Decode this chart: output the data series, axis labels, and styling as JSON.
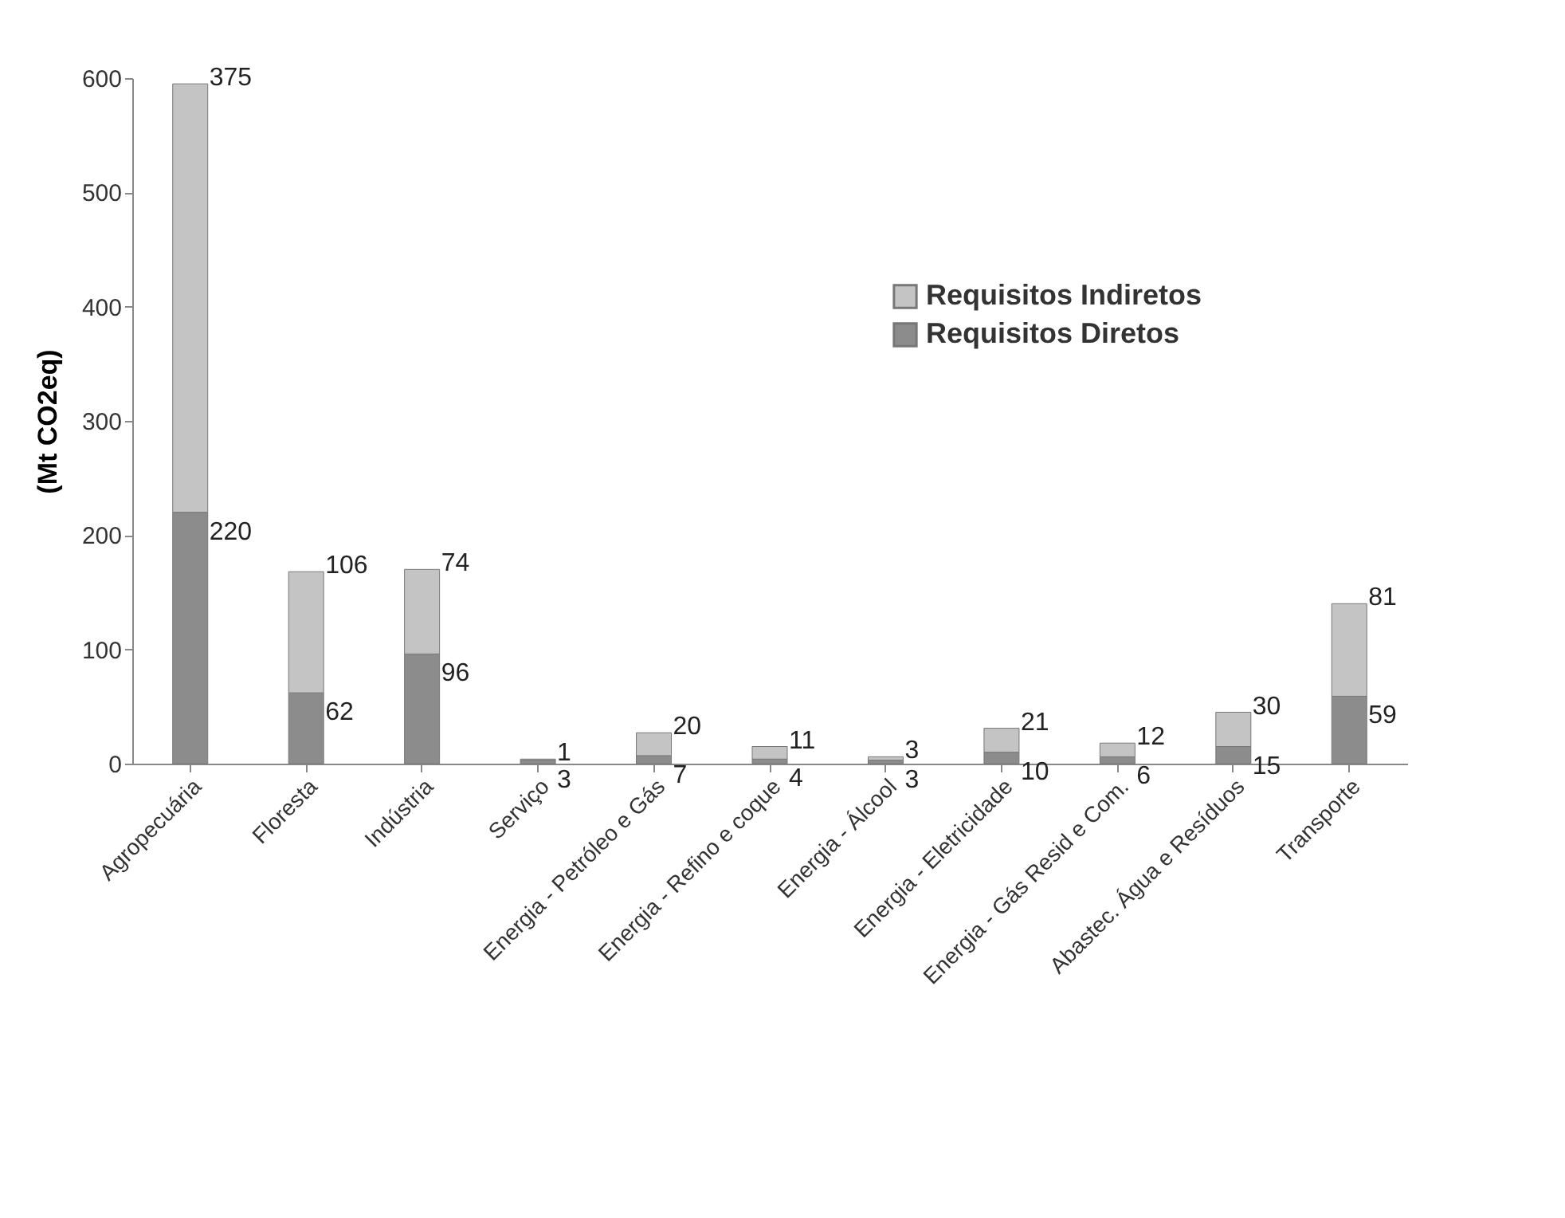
{
  "chart_data": {
    "type": "bar",
    "stacked": true,
    "ylabel": "(Mt CO2eq)",
    "categories": [
      "Agropecuária",
      "Floresta",
      "Indústria",
      "Serviço",
      "Energia - Petróleo e Gás",
      "Energia - Refino e coque",
      "Energia - Álcool",
      "Energia - Eletricidade",
      "Energia - Gás Resid e Com.",
      "Abastec. Água e Resíduos",
      "Transporte"
    ],
    "series": [
      {
        "name": "Requisitos Diretos",
        "color": "#8c8c8c",
        "values": [
          220,
          62,
          96,
          3,
          7,
          4,
          3,
          10,
          6,
          15,
          59
        ]
      },
      {
        "name": "Requisitos Indiretos",
        "color": "#c4c4c4",
        "values": [
          375,
          106,
          74,
          1,
          20,
          11,
          3,
          21,
          12,
          30,
          81
        ]
      }
    ],
    "ylim": [
      0,
      600
    ],
    "yticks": [
      0,
      100,
      200,
      300,
      400,
      500,
      600
    ],
    "grid": false,
    "legend": "top right",
    "data_labels": true
  }
}
